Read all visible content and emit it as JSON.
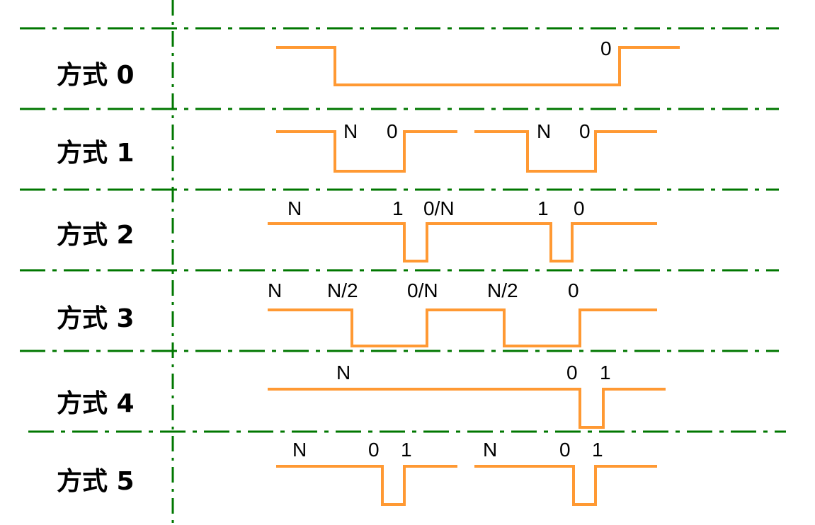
{
  "colors": {
    "grid": "#007700",
    "signal": "#ff9933",
    "text": "#000000",
    "background": "#ffffff"
  },
  "modes": [
    {
      "label": "方式 0",
      "annotations": [
        "0"
      ]
    },
    {
      "label": "方式 1",
      "annotations": [
        "N",
        "0",
        "N",
        "0"
      ]
    },
    {
      "label": "方式 2",
      "annotations": [
        "N",
        "1",
        "0/N",
        "1",
        "0"
      ]
    },
    {
      "label": "方式 3",
      "annotations": [
        "N",
        "N/2",
        "0/N",
        "N/2",
        "0"
      ]
    },
    {
      "label": "方式 4",
      "annotations": [
        "N",
        "0",
        "1"
      ]
    },
    {
      "label": "方式 5",
      "annotations": [
        "N",
        "0",
        "1",
        "N",
        "0",
        "1"
      ]
    }
  ]
}
